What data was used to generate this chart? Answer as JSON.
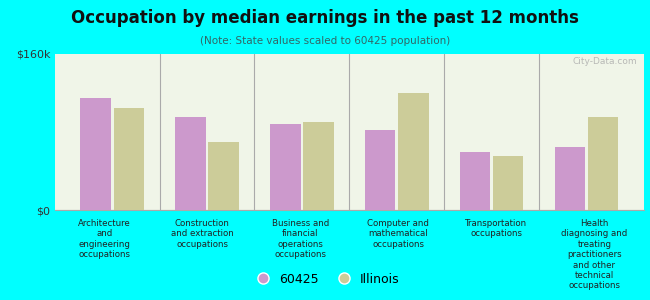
{
  "title": "Occupation by median earnings in the past 12 months",
  "subtitle": "(Note: State values scaled to 60425 population)",
  "categories": [
    "Architecture\nand\nengineering\noccupations",
    "Construction\nand extraction\noccupations",
    "Business and\nfinancial\noperations\noccupations",
    "Computer and\nmathematical\noccupations",
    "Transportation\noccupations",
    "Health\ndiagnosing and\ntreating\npractitioners\nand other\ntechnical\noccupations"
  ],
  "values_60425": [
    115000,
    95000,
    88000,
    82000,
    60000,
    65000
  ],
  "values_illinois": [
    105000,
    70000,
    90000,
    120000,
    55000,
    95000
  ],
  "color_60425": "#cc99cc",
  "color_illinois": "#cccc99",
  "background_color": "#00ffff",
  "plot_bg_color": "#f0f5e8",
  "ylim": [
    0,
    160000
  ],
  "ytick_labels": [
    "$0",
    "$160k"
  ],
  "legend_labels": [
    "60425",
    "Illinois"
  ],
  "watermark": "City-Data.com"
}
